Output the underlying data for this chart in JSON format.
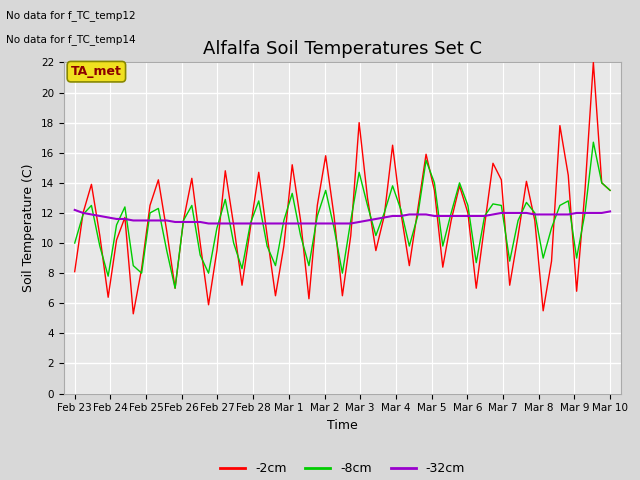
{
  "title": "Alfalfa Soil Temperatures Set C",
  "xlabel": "Time",
  "ylabel": "Soil Temperature (C)",
  "ylim": [
    0,
    22
  ],
  "annotation1": "No data for f_TC_temp12",
  "annotation2": "No data for f_TC_temp14",
  "ta_met_label": "TA_met",
  "legend_labels": [
    "-2cm",
    "-8cm",
    "-32cm"
  ],
  "legend_colors": [
    "#ff0000",
    "#00cc00",
    "#9900cc"
  ],
  "xtick_labels": [
    "Feb 23",
    "Feb 24",
    "Feb 25",
    "Feb 26",
    "Feb 27",
    "Feb 28",
    "Mar 1",
    "Mar 2",
    "Mar 3",
    "Mar 4",
    "Mar 5",
    "Mar 6",
    "Mar 7",
    "Mar 8",
    "Mar 9",
    "Mar 10"
  ],
  "background_color": "#d8d8d8",
  "plot_bg_color": "#e8e8e8",
  "grid_color": "#ffffff",
  "title_fontsize": 13,
  "axis_fontsize": 9,
  "tick_fontsize": 7.5,
  "red_2cm": [
    8.1,
    12.0,
    13.9,
    10.5,
    6.4,
    10.2,
    11.7,
    5.3,
    8.3,
    12.5,
    14.2,
    10.8,
    7.0,
    11.5,
    14.3,
    10.0,
    5.9,
    9.5,
    14.8,
    11.2,
    7.2,
    11.0,
    14.7,
    10.5,
    6.5,
    9.8,
    15.2,
    11.5,
    6.3,
    12.5,
    15.8,
    11.8,
    6.5,
    10.5,
    18.0,
    13.0,
    9.5,
    11.8,
    16.5,
    12.0,
    8.5,
    12.2,
    15.9,
    13.5,
    8.4,
    11.5,
    13.8,
    12.0,
    7.0,
    11.2,
    15.3,
    14.2,
    7.2,
    10.5,
    14.1,
    11.5,
    5.5,
    8.8,
    17.8,
    14.5,
    6.8,
    13.5,
    22.0,
    14.0,
    13.5
  ],
  "green_8cm": [
    10.0,
    11.9,
    12.5,
    9.8,
    7.8,
    11.2,
    12.4,
    8.5,
    8.0,
    12.0,
    12.3,
    9.5,
    7.0,
    11.5,
    12.5,
    9.2,
    8.0,
    11.0,
    12.9,
    10.0,
    8.3,
    11.3,
    12.8,
    9.8,
    8.5,
    11.5,
    13.3,
    10.5,
    8.5,
    11.8,
    13.5,
    11.0,
    8.0,
    11.5,
    14.7,
    12.5,
    10.5,
    12.0,
    13.8,
    12.2,
    9.8,
    11.8,
    15.5,
    14.0,
    9.8,
    12.0,
    14.0,
    12.5,
    8.7,
    11.8,
    12.6,
    12.5,
    8.8,
    11.5,
    12.7,
    12.0,
    9.0,
    11.0,
    12.5,
    12.8,
    9.0,
    12.0,
    16.7,
    14.0,
    13.5
  ],
  "purple_32cm": [
    12.2,
    12.0,
    11.9,
    11.8,
    11.7,
    11.6,
    11.6,
    11.5,
    11.5,
    11.5,
    11.5,
    11.5,
    11.4,
    11.4,
    11.4,
    11.4,
    11.3,
    11.3,
    11.3,
    11.3,
    11.3,
    11.3,
    11.3,
    11.3,
    11.3,
    11.3,
    11.3,
    11.3,
    11.3,
    11.3,
    11.3,
    11.3,
    11.3,
    11.3,
    11.4,
    11.5,
    11.6,
    11.7,
    11.8,
    11.8,
    11.9,
    11.9,
    11.9,
    11.8,
    11.8,
    11.8,
    11.8,
    11.8,
    11.8,
    11.8,
    11.9,
    12.0,
    12.0,
    12.0,
    12.0,
    11.9,
    11.9,
    11.9,
    11.9,
    11.9,
    12.0,
    12.0,
    12.0,
    12.0,
    12.1
  ]
}
